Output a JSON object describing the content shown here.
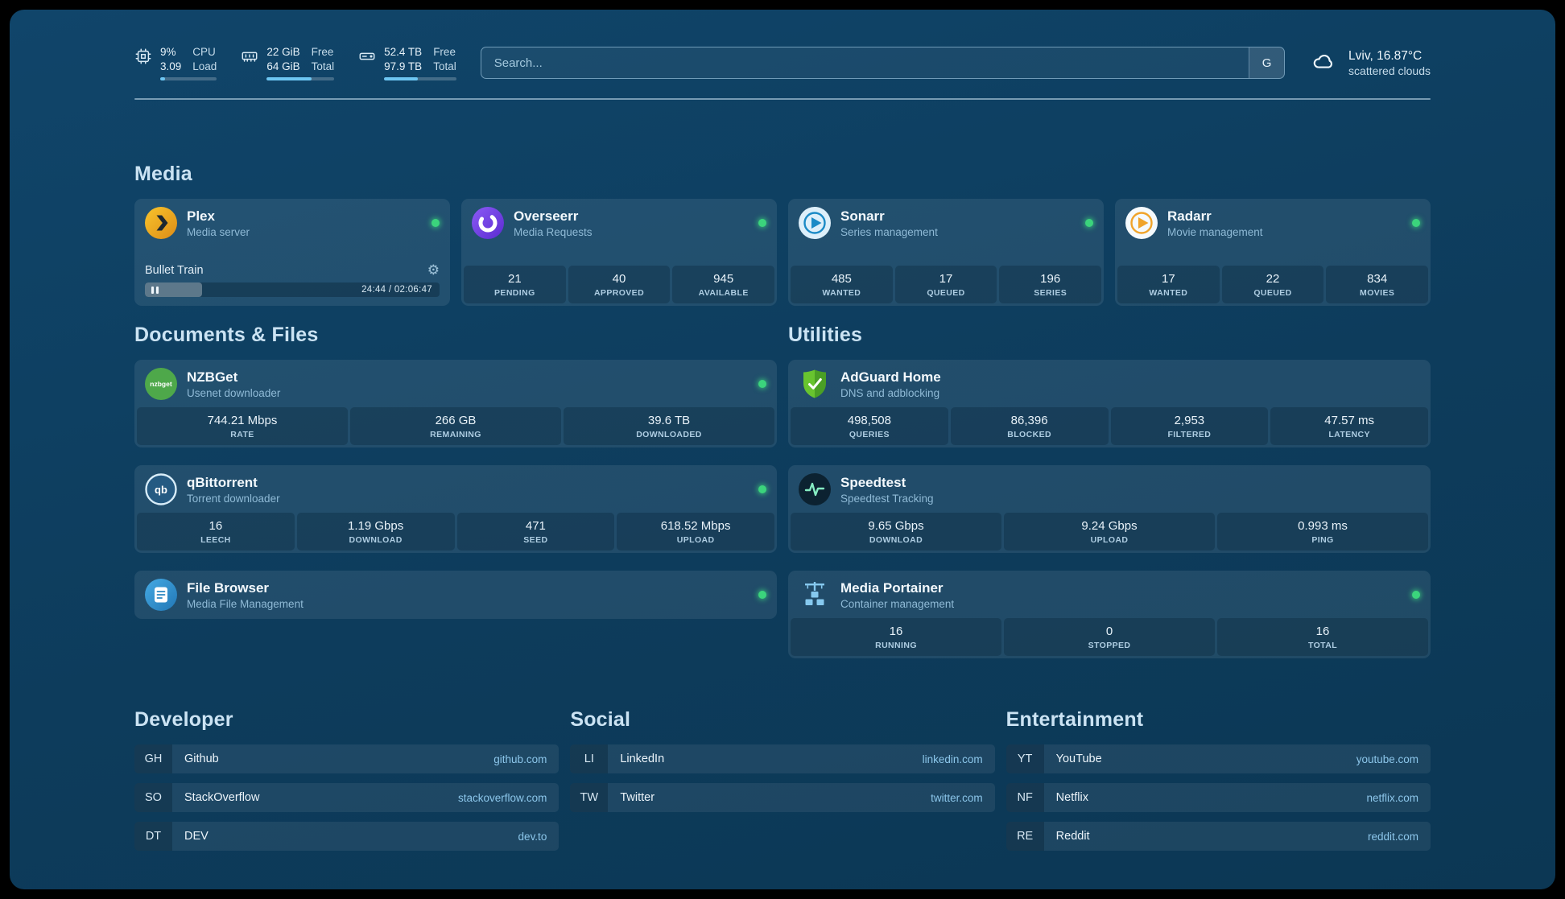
{
  "theme": {
    "background": "#0e3e5f",
    "card": "rgba(255,255,255,0.085)",
    "accent_blue": "#6dc6f2",
    "status_green": "#3bd47c",
    "link_blue": "#8cc6ea"
  },
  "topbar": {
    "resources": [
      {
        "icon": "cpu-icon",
        "value1": "9%",
        "label1": "CPU",
        "value2": "3.09",
        "label2": "Load",
        "bar_pct": 9
      },
      {
        "icon": "memory-icon",
        "value1": "22 GiB",
        "label1": "Free",
        "value2": "64 GiB",
        "label2": "Total",
        "bar_pct": 66
      },
      {
        "icon": "disk-icon",
        "value1": "52.4 TB",
        "label1": "Free",
        "value2": "97.9 TB",
        "label2": "Total",
        "bar_pct": 47
      }
    ],
    "search": {
      "placeholder": "Search...",
      "button": "G"
    },
    "weather": {
      "icon": "cloud-icon",
      "line1": "Lviv, 16.87°C",
      "line2": "scattered clouds"
    }
  },
  "sections": {
    "media": {
      "title": "Media",
      "plex": {
        "name": "Plex",
        "subtitle": "Media server",
        "status": "online",
        "now_playing": {
          "title": "Bullet Train",
          "time": "24:44 / 02:06:47",
          "progress_pct": 19.5
        }
      },
      "overseerr": {
        "name": "Overseerr",
        "subtitle": "Media Requests",
        "status": "online",
        "stats": [
          {
            "value": "21",
            "label": "PENDING"
          },
          {
            "value": "40",
            "label": "APPROVED"
          },
          {
            "value": "945",
            "label": "AVAILABLE"
          }
        ]
      },
      "sonarr": {
        "name": "Sonarr",
        "subtitle": "Series management",
        "status": "online",
        "stats": [
          {
            "value": "485",
            "label": "WANTED"
          },
          {
            "value": "17",
            "label": "QUEUED"
          },
          {
            "value": "196",
            "label": "SERIES"
          }
        ]
      },
      "radarr": {
        "name": "Radarr",
        "subtitle": "Movie management",
        "status": "online",
        "stats": [
          {
            "value": "17",
            "label": "WANTED"
          },
          {
            "value": "22",
            "label": "QUEUED"
          },
          {
            "value": "834",
            "label": "MOVIES"
          }
        ]
      }
    },
    "documents": {
      "title": "Documents & Files",
      "nzbget": {
        "name": "NZBGet",
        "subtitle": "Usenet downloader",
        "status": "online",
        "stats": [
          {
            "value": "744.21 Mbps",
            "label": "RATE"
          },
          {
            "value": "266 GB",
            "label": "REMAINING"
          },
          {
            "value": "39.6 TB",
            "label": "DOWNLOADED"
          }
        ]
      },
      "qbittorrent": {
        "name": "qBittorrent",
        "subtitle": "Torrent downloader",
        "status": "online",
        "stats": [
          {
            "value": "16",
            "label": "LEECH"
          },
          {
            "value": "1.19 Gbps",
            "label": "DOWNLOAD"
          },
          {
            "value": "471",
            "label": "SEED"
          },
          {
            "value": "618.52 Mbps",
            "label": "UPLOAD"
          }
        ]
      },
      "filebrowser": {
        "name": "File Browser",
        "subtitle": "Media File Management",
        "status": "online"
      }
    },
    "utilities": {
      "title": "Utilities",
      "adguard": {
        "name": "AdGuard Home",
        "subtitle": "DNS and adblocking",
        "stats": [
          {
            "value": "498,508",
            "label": "QUERIES"
          },
          {
            "value": "86,396",
            "label": "BLOCKED"
          },
          {
            "value": "2,953",
            "label": "FILTERED"
          },
          {
            "value": "47.57 ms",
            "label": "LATENCY"
          }
        ]
      },
      "speedtest": {
        "name": "Speedtest",
        "subtitle": "Speedtest Tracking",
        "stats": [
          {
            "value": "9.65 Gbps",
            "label": "DOWNLOAD"
          },
          {
            "value": "9.24 Gbps",
            "label": "UPLOAD"
          },
          {
            "value": "0.993 ms",
            "label": "PING"
          }
        ]
      },
      "portainer": {
        "name": "Media Portainer",
        "subtitle": "Container management",
        "status": "online",
        "stats": [
          {
            "value": "16",
            "label": "RUNNING"
          },
          {
            "value": "0",
            "label": "STOPPED"
          },
          {
            "value": "16",
            "label": "TOTAL"
          }
        ]
      }
    }
  },
  "bookmarks": [
    {
      "title": "Developer",
      "items": [
        {
          "abbr": "GH",
          "label": "Github",
          "domain": "github.com"
        },
        {
          "abbr": "SO",
          "label": "StackOverflow",
          "domain": "stackoverflow.com"
        },
        {
          "abbr": "DT",
          "label": "DEV",
          "domain": "dev.to"
        }
      ]
    },
    {
      "title": "Social",
      "items": [
        {
          "abbr": "LI",
          "label": "LinkedIn",
          "domain": "linkedin.com"
        },
        {
          "abbr": "TW",
          "label": "Twitter",
          "domain": "twitter.com"
        }
      ]
    },
    {
      "title": "Entertainment",
      "items": [
        {
          "abbr": "YT",
          "label": "YouTube",
          "domain": "youtube.com"
        },
        {
          "abbr": "NF",
          "label": "Netflix",
          "domain": "netflix.com"
        },
        {
          "abbr": "RE",
          "label": "Reddit",
          "domain": "reddit.com"
        }
      ]
    }
  ]
}
